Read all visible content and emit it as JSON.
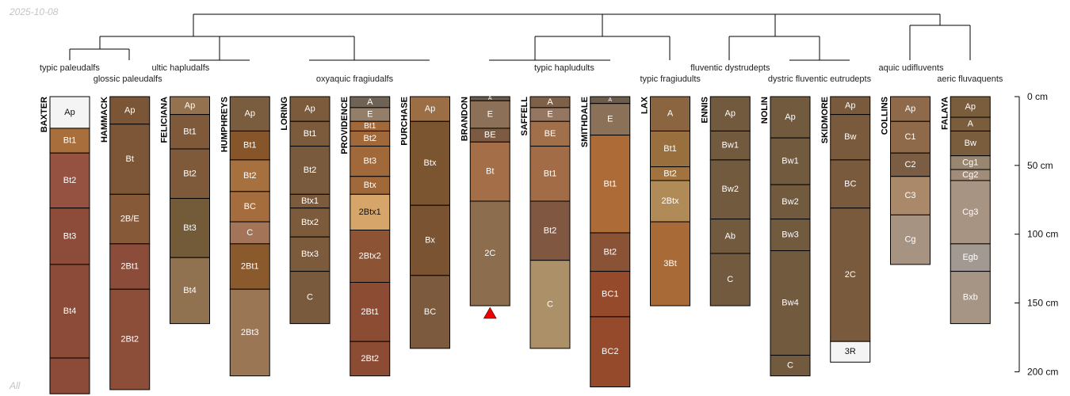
{
  "header": {
    "date": "2025-10-08"
  },
  "footer": {
    "label": "All"
  },
  "depth_axis": {
    "unit": "cm",
    "ticks": [
      {
        "depth": 0,
        "label": "0 cm"
      },
      {
        "depth": 50,
        "label": "50 cm"
      },
      {
        "depth": 100,
        "label": "100 cm"
      },
      {
        "depth": 150,
        "label": "150 cm"
      },
      {
        "depth": 200,
        "label": "200 cm"
      }
    ]
  },
  "groups": [
    {
      "name": "typic paleudalfs",
      "members": [
        0
      ]
    },
    {
      "name": "glossic paleudalfs",
      "members": [
        1
      ]
    },
    {
      "name": "ultic hapludalfs",
      "members": [
        2
      ]
    },
    {
      "name": "oxyaquic fragiudalfs",
      "members": [
        3,
        4,
        5,
        6
      ]
    },
    {
      "name": "typic hapludults",
      "members": [
        7,
        8,
        9
      ]
    },
    {
      "name": "typic fragiudults",
      "members": [
        10
      ]
    },
    {
      "name": "fluventic dystrudepts",
      "members": [
        11
      ]
    },
    {
      "name": "dystric fluventic eutrudepts",
      "members": [
        12,
        13
      ]
    },
    {
      "name": "aquic udifluvents",
      "members": [
        14
      ]
    },
    {
      "name": "aeric fluvaquents",
      "members": [
        15
      ]
    }
  ],
  "profiles": [
    {
      "name": "BAXTER",
      "horizons": [
        {
          "name": "Ap",
          "top": 0,
          "bottom": 23,
          "color": "#f4f4f4"
        },
        {
          "name": "Bt1",
          "top": 23,
          "bottom": 41,
          "color": "#a86e3c"
        },
        {
          "name": "Bt2",
          "top": 41,
          "bottom": 81,
          "color": "#955240"
        },
        {
          "name": "Bt3",
          "top": 81,
          "bottom": 122,
          "color": "#8d4c3a"
        },
        {
          "name": "Bt4",
          "top": 122,
          "bottom": 190,
          "color": "#8c4a38"
        },
        {
          "name": "",
          "top": 190,
          "bottom": 216,
          "color": "#8c4a38"
        }
      ]
    },
    {
      "name": "HAMMACK",
      "horizons": [
        {
          "name": "Ap",
          "top": 0,
          "bottom": 20,
          "color": "#7a5637"
        },
        {
          "name": "Bt",
          "top": 20,
          "bottom": 71,
          "color": "#7c5636"
        },
        {
          "name": "2B/E",
          "top": 71,
          "bottom": 107,
          "color": "#865938"
        },
        {
          "name": "2Bt1",
          "top": 107,
          "bottom": 140,
          "color": "#8b4d39"
        },
        {
          "name": "2Bt2",
          "top": 140,
          "bottom": 213,
          "color": "#8c4d39"
        }
      ]
    },
    {
      "name": "FELICIANA",
      "horizons": [
        {
          "name": "Ap",
          "top": 0,
          "bottom": 13,
          "color": "#94714f"
        },
        {
          "name": "Bt1",
          "top": 13,
          "bottom": 38,
          "color": "#7e5a3a"
        },
        {
          "name": "Bt2",
          "top": 38,
          "bottom": 74,
          "color": "#7e5a3a"
        },
        {
          "name": "Bt3",
          "top": 74,
          "bottom": 117,
          "color": "#735a39"
        },
        {
          "name": "Bt4",
          "top": 117,
          "bottom": 165,
          "color": "#907150"
        }
      ]
    },
    {
      "name": "HUMPHREYS",
      "horizons": [
        {
          "name": "Ap",
          "top": 0,
          "bottom": 25,
          "color": "#7a5c3e"
        },
        {
          "name": "Bt1",
          "top": 25,
          "bottom": 46,
          "color": "#86552a"
        },
        {
          "name": "Bt2",
          "top": 46,
          "bottom": 69,
          "color": "#a7703f"
        },
        {
          "name": "BC",
          "top": 69,
          "bottom": 91,
          "color": "#a56c3d"
        },
        {
          "name": "C",
          "top": 91,
          "bottom": 107,
          "color": "#a37457"
        },
        {
          "name": "2Bt1",
          "top": 107,
          "bottom": 140,
          "color": "#8b5a2c"
        },
        {
          "name": "2Bt3",
          "top": 140,
          "bottom": 203,
          "color": "#9b7654"
        }
      ]
    },
    {
      "name": "LORING",
      "horizons": [
        {
          "name": "Ap",
          "top": 0,
          "bottom": 18,
          "color": "#7c5b3d"
        },
        {
          "name": "Bt1",
          "top": 18,
          "bottom": 36,
          "color": "#7c5b3d"
        },
        {
          "name": "Bt2",
          "top": 36,
          "bottom": 71,
          "color": "#7a5a3c"
        },
        {
          "name": "Btx1",
          "top": 71,
          "bottom": 81,
          "color": "#7c5b3d"
        },
        {
          "name": "Btx2",
          "top": 81,
          "bottom": 102,
          "color": "#7c5b3d"
        },
        {
          "name": "Btx3",
          "top": 102,
          "bottom": 127,
          "color": "#7c5b3d"
        },
        {
          "name": "C",
          "top": 127,
          "bottom": 165,
          "color": "#7a5a3c"
        }
      ]
    },
    {
      "name": "PROVIDENCE",
      "horizons": [
        {
          "name": "A",
          "top": 0,
          "bottom": 8,
          "color": "#6f6355"
        },
        {
          "name": "E",
          "top": 8,
          "bottom": 18,
          "color": "#937e6a"
        },
        {
          "name": "Bt1",
          "top": 18,
          "bottom": 25,
          "color": "#a1693a"
        },
        {
          "name": "Bt2",
          "top": 25,
          "bottom": 36,
          "color": "#a1693a"
        },
        {
          "name": "Bt3",
          "top": 36,
          "bottom": 58,
          "color": "#a1693a"
        },
        {
          "name": "Btx",
          "top": 58,
          "bottom": 71,
          "color": "#a1693a"
        },
        {
          "name": "2Btx1",
          "top": 71,
          "bottom": 97,
          "color": "#d5a56a"
        },
        {
          "name": "2Btx2",
          "top": 97,
          "bottom": 135,
          "color": "#8c5435"
        },
        {
          "name": "2Bt1",
          "top": 135,
          "bottom": 178,
          "color": "#8c4c34"
        },
        {
          "name": "2Bt2",
          "top": 178,
          "bottom": 203,
          "color": "#8c4c34"
        }
      ]
    },
    {
      "name": "PURCHASE",
      "horizons": [
        {
          "name": "Ap",
          "top": 0,
          "bottom": 18,
          "color": "#9b6e45"
        },
        {
          "name": "Btx",
          "top": 18,
          "bottom": 79,
          "color": "#7b5530"
        },
        {
          "name": "Bx",
          "top": 79,
          "bottom": 130,
          "color": "#7a5432"
        },
        {
          "name": "BC",
          "top": 130,
          "bottom": 183,
          "color": "#7b5a3d"
        }
      ]
    },
    {
      "name": "BRANDON",
      "horizons": [
        {
          "name": "A",
          "top": 0,
          "bottom": 3,
          "color": "#6b5b4b"
        },
        {
          "name": "E",
          "top": 3,
          "bottom": 23,
          "color": "#8c7158"
        },
        {
          "name": "BE",
          "top": 23,
          "bottom": 33,
          "color": "#7c5b42"
        },
        {
          "name": "Bt",
          "top": 33,
          "bottom": 76,
          "color": "#a36e48"
        },
        {
          "name": "2C",
          "top": 76,
          "bottom": 152,
          "color": "#8c6d4e"
        }
      ]
    },
    {
      "name": "SAFFELL",
      "horizons": [
        {
          "name": "A",
          "top": 0,
          "bottom": 8,
          "color": "#7f6149"
        },
        {
          "name": "E",
          "top": 8,
          "bottom": 18,
          "color": "#957660"
        },
        {
          "name": "BE",
          "top": 18,
          "bottom": 36,
          "color": "#a1704a"
        },
        {
          "name": "Bt1",
          "top": 36,
          "bottom": 76,
          "color": "#a26c47"
        },
        {
          "name": "Bt2",
          "top": 76,
          "bottom": 119,
          "color": "#805842"
        },
        {
          "name": "C",
          "top": 119,
          "bottom": 183,
          "color": "#ab9068"
        }
      ]
    },
    {
      "name": "SMITHDALE",
      "horizons": [
        {
          "name": "A",
          "top": 0,
          "bottom": 5,
          "color": "#6e5c4a"
        },
        {
          "name": "E",
          "top": 5,
          "bottom": 28,
          "color": "#8b7158"
        },
        {
          "name": "Bt1",
          "top": 28,
          "bottom": 99,
          "color": "#ad6b37"
        },
        {
          "name": "Bt2",
          "top": 99,
          "bottom": 127,
          "color": "#8b5336"
        },
        {
          "name": "BC1",
          "top": 127,
          "bottom": 160,
          "color": "#954a2c"
        },
        {
          "name": "BC2",
          "top": 160,
          "bottom": 211,
          "color": "#954a2c"
        }
      ]
    },
    {
      "name": "LAX",
      "horizons": [
        {
          "name": "A",
          "top": 0,
          "bottom": 25,
          "color": "#8b6440"
        },
        {
          "name": "Bt1",
          "top": 25,
          "bottom": 51,
          "color": "#9a6f3e"
        },
        {
          "name": "Bt2",
          "top": 51,
          "bottom": 61,
          "color": "#a2733f"
        },
        {
          "name": "2Btx",
          "top": 61,
          "bottom": 91,
          "color": "#b08b57"
        },
        {
          "name": "3Bt",
          "top": 91,
          "bottom": 152,
          "color": "#a86a37"
        }
      ]
    },
    {
      "name": "ENNIS",
      "horizons": [
        {
          "name": "Ap",
          "top": 0,
          "bottom": 25,
          "color": "#725a3f"
        },
        {
          "name": "Bw1",
          "top": 25,
          "bottom": 46,
          "color": "#725a3f"
        },
        {
          "name": "Bw2",
          "top": 46,
          "bottom": 89,
          "color": "#725a3f"
        },
        {
          "name": "Ab",
          "top": 89,
          "bottom": 114,
          "color": "#725a3f"
        },
        {
          "name": "C",
          "top": 114,
          "bottom": 152,
          "color": "#725a3f"
        }
      ]
    },
    {
      "name": "NOLIN",
      "horizons": [
        {
          "name": "Ap",
          "top": 0,
          "bottom": 30,
          "color": "#725a3f"
        },
        {
          "name": "Bw1",
          "top": 30,
          "bottom": 64,
          "color": "#725a3f"
        },
        {
          "name": "Bw2",
          "top": 64,
          "bottom": 89,
          "color": "#725a3f"
        },
        {
          "name": "Bw3",
          "top": 89,
          "bottom": 112,
          "color": "#725a3f"
        },
        {
          "name": "Bw4",
          "top": 112,
          "bottom": 188,
          "color": "#725a3f"
        },
        {
          "name": "C",
          "top": 188,
          "bottom": 203,
          "color": "#725a3f"
        }
      ]
    },
    {
      "name": "SKIDMORE",
      "horizons": [
        {
          "name": "Ap",
          "top": 0,
          "bottom": 13,
          "color": "#7a5a3c"
        },
        {
          "name": "Bw",
          "top": 13,
          "bottom": 46,
          "color": "#7a5a3c"
        },
        {
          "name": "BC",
          "top": 46,
          "bottom": 81,
          "color": "#7a5a3c"
        },
        {
          "name": "2C",
          "top": 81,
          "bottom": 178,
          "color": "#7a5a3c"
        },
        {
          "name": "3R",
          "top": 178,
          "bottom": 193,
          "color": "#f4f4f4"
        }
      ]
    },
    {
      "name": "COLLINS",
      "horizons": [
        {
          "name": "Ap",
          "top": 0,
          "bottom": 18,
          "color": "#8e6a4a"
        },
        {
          "name": "C1",
          "top": 18,
          "bottom": 41,
          "color": "#8e6a4a"
        },
        {
          "name": "C2",
          "top": 41,
          "bottom": 58,
          "color": "#7a5d42"
        },
        {
          "name": "C3",
          "top": 58,
          "bottom": 86,
          "color": "#a9896a"
        },
        {
          "name": "Cg",
          "top": 86,
          "bottom": 122,
          "color": "#a79382"
        }
      ]
    },
    {
      "name": "FALAYA",
      "horizons": [
        {
          "name": "Ap",
          "top": 0,
          "bottom": 15,
          "color": "#7a5d3c"
        },
        {
          "name": "A",
          "top": 15,
          "bottom": 25,
          "color": "#7a5d3c"
        },
        {
          "name": "Bw",
          "top": 25,
          "bottom": 43,
          "color": "#7a5d3c"
        },
        {
          "name": "Cg1",
          "top": 43,
          "bottom": 53,
          "color": "#998670"
        },
        {
          "name": "Cg2",
          "top": 53,
          "bottom": 61,
          "color": "#a08c78"
        },
        {
          "name": "Cg3",
          "top": 61,
          "bottom": 107,
          "color": "#a89482"
        },
        {
          "name": "Egb",
          "top": 107,
          "bottom": 127,
          "color": "#a29a92"
        },
        {
          "name": "Bxb",
          "top": 127,
          "bottom": 165,
          "color": "#a69484"
        }
      ]
    }
  ],
  "markers": [
    {
      "profile": 7,
      "type": "triangle",
      "color": "#ee0000",
      "depth": 152
    }
  ],
  "colors": {
    "outline": "#000000",
    "line": "#000000",
    "text_dark": "#111111",
    "text_light": "#ffffff"
  }
}
